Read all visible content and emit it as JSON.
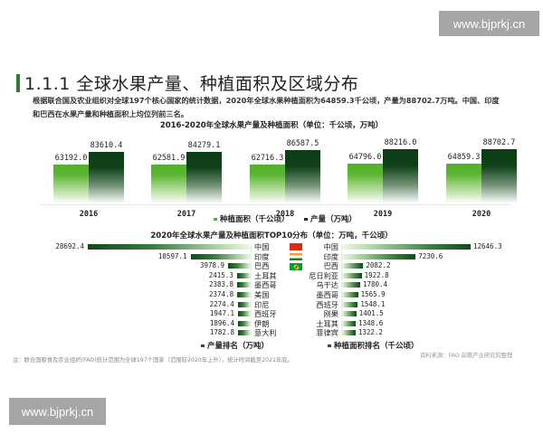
{
  "watermarks": {
    "top_right": "www.bjprkj.cn",
    "bottom_left": "www.bjprkj.cn"
  },
  "header": {
    "title": "1.1.1 全球水果产量、种植面积及区域分布",
    "accent_color": "#2e7d32"
  },
  "intro": {
    "line1": "根据联合国及农业组织对全球197个核心国家的统计数据，2020年全球水果种植面积为64859.3千公顷，产量为88702.7万吨。中国、印度",
    "line2": "和巴西在水果产量和种植面积上均位列前三名。"
  },
  "chart_data": [
    {
      "type": "bar",
      "title": "2016-2020年全球水果产量及种植面积（单位：千公顷，万吨）",
      "categories": [
        "2016",
        "2017",
        "2018",
        "2019",
        "2020"
      ],
      "series": [
        {
          "name": "种植面积（千公顷）",
          "color": "#52b12a",
          "values": [
            63192.0,
            62581.9,
            62716.3,
            64796.0,
            64859.3
          ],
          "labels": [
            "63192.0",
            "62581.9",
            "62716.3",
            "64796.0",
            "64859.3"
          ]
        },
        {
          "name": "产量（万吨）",
          "color": "#0d3d14",
          "values": [
            83610.4,
            84279.1,
            86587.5,
            88216.0,
            88702.7
          ],
          "labels": [
            "83610.4",
            "84279.1",
            "86587.5",
            "88216.0",
            "88702.7"
          ]
        }
      ],
      "xlabel": "",
      "ylabel": "",
      "legend_position": "bottom"
    },
    {
      "type": "bar",
      "orientation": "horizontal-butterfly",
      "title": "2020年全球水果产量及种植面积TOP10分布（单位：万吨，千公顷）",
      "left": {
        "name": "产量排名（万吨）",
        "categories": [
          "中国",
          "印度",
          "巴西",
          "土耳其",
          "墨西哥",
          "美国",
          "印尼",
          "西班牙",
          "伊朗",
          "意大利"
        ],
        "values": [
          28692.4,
          10597.1,
          3978.9,
          2415.3,
          2383.8,
          2374.8,
          2274.4,
          1947.1,
          1896.4,
          1782.8
        ],
        "labels": [
          "28692.4",
          "10597.1",
          "3978.9",
          "2415.3",
          "2383.8",
          "2374.8",
          "2274.4",
          "1947.1",
          "1896.4",
          "1782.8"
        ]
      },
      "right": {
        "name": "种植面积排名（千公顷）",
        "categories": [
          "中国",
          "印度",
          "巴西",
          "尼日利亚",
          "乌干达",
          "墨西哥",
          "西班牙",
          "刚果",
          "土耳其",
          "菲律宾"
        ],
        "values": [
          12646.3,
          7230.6,
          2082.2,
          1922.8,
          1780.4,
          1565.9,
          1548.1,
          1401.5,
          1348.6,
          1322.2
        ],
        "labels": [
          "12646.3",
          "7230.6",
          "2082.2",
          "1922.8",
          "1780.4",
          "1565.9",
          "1548.1",
          "1401.5",
          "1348.6",
          "1322.2"
        ]
      },
      "flags": [
        "china-flag",
        "india-flag",
        "brazil-flag"
      ],
      "legend_position": "bottom"
    }
  ],
  "footer": {
    "note": "注：联合国粮食及农业组织(FAO)统计范围为全球197个国家（范围较2020年上升），统计时间截至2021年底。",
    "source": "资料来源：FAO 前瞻产业研究院整理"
  }
}
